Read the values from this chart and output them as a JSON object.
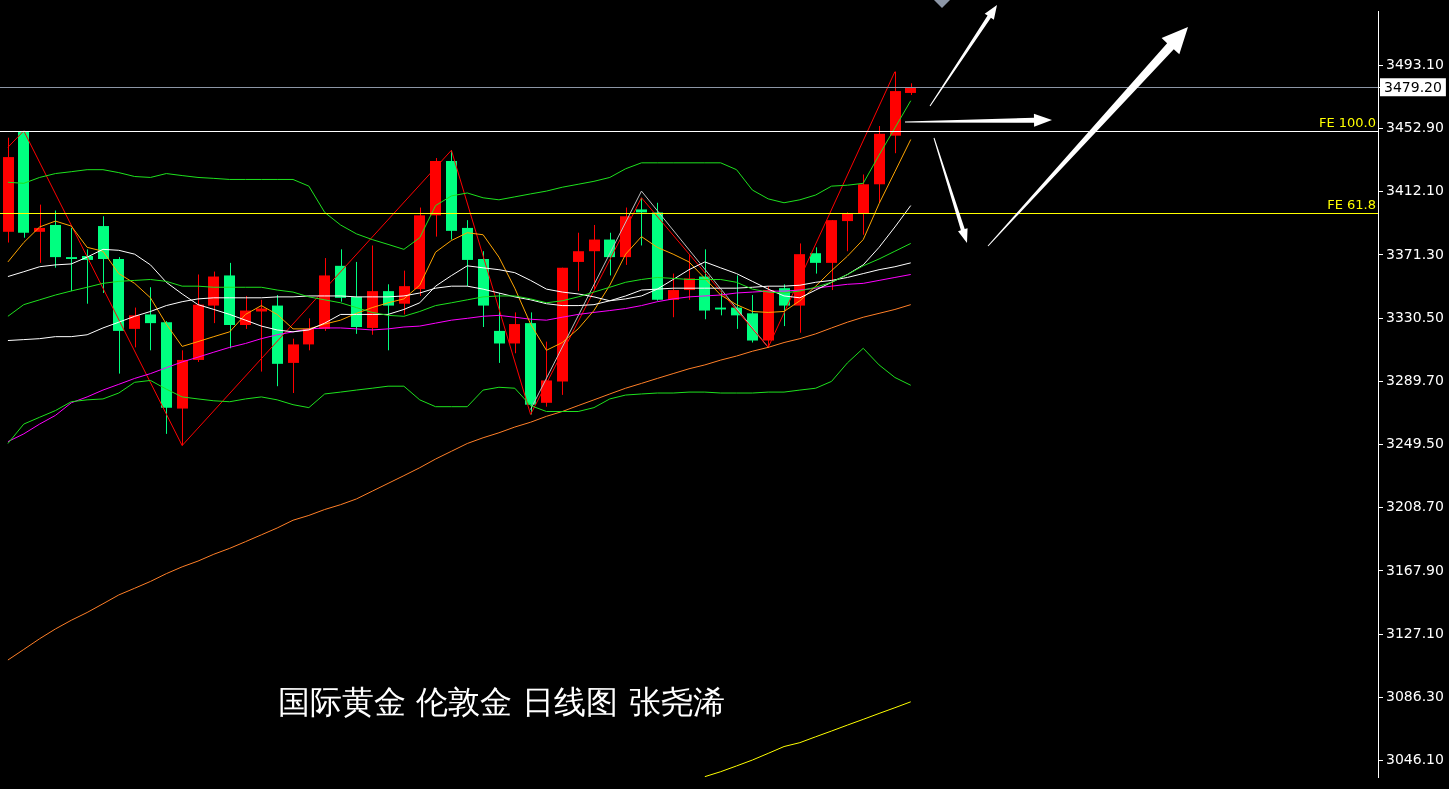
{
  "chart_data": {
    "type": "candlestick",
    "categories": [
      null,
      null,
      null,
      null,
      null,
      null,
      null,
      null,
      null,
      null,
      null,
      null,
      null,
      null,
      null,
      null,
      null,
      null,
      null,
      null,
      null,
      null,
      null,
      null,
      null,
      null,
      null,
      null,
      null,
      null,
      null,
      null,
      null,
      null,
      null,
      null,
      null,
      null,
      null,
      null,
      null,
      null,
      null,
      null,
      null,
      null,
      null,
      null,
      null,
      null,
      null,
      null,
      null,
      null,
      null,
      null,
      null,
      null,
      null,
      null,
      null,
      null,
      null,
      null,
      null,
      null,
      null,
      null,
      null,
      null,
      null,
      null,
      null,
      null,
      null,
      null,
      null,
      null,
      null,
      null,
      null,
      null,
      null,
      null,
      null,
      null,
      null
    ],
    "ohlc": [
      [
        3386.2,
        3446.8,
        3379.3,
        3434.3
      ],
      [
        3450.6,
        3451.2,
        3382.4,
        3385.6
      ],
      [
        3386.2,
        3403.7,
        3366.2,
        3388.7
      ],
      [
        3390.6,
        3399.9,
        3363.1,
        3369.9
      ],
      [
        3369.9,
        3388.7,
        3348.0,
        3368.7
      ],
      [
        3370.6,
        3374.9,
        3339.9,
        3368.1
      ],
      [
        3389.9,
        3396.2,
        3346.8,
        3368.7
      ],
      [
        3368.7,
        3369.9,
        3294.9,
        3322.4
      ],
      [
        3323.7,
        3337.4,
        3311.8,
        3332.4
      ],
      [
        3333.0,
        3350.5,
        3309.9,
        3327.4
      ],
      [
        3328.0,
        3328.7,
        3256.1,
        3273.0
      ],
      [
        3272.4,
        3309.9,
        3248.6,
        3303.7
      ],
      [
        3303.7,
        3358.7,
        3302.4,
        3339.3
      ],
      [
        3338.7,
        3360.6,
        3327.4,
        3357.4
      ],
      [
        3358.1,
        3366.2,
        3311.2,
        3326.2
      ],
      [
        3326.2,
        3344.9,
        3323.7,
        3335.5
      ],
      [
        3334.9,
        3342.4,
        3296.2,
        3336.8
      ],
      [
        3338.7,
        3345.5,
        3286.8,
        3301.2
      ],
      [
        3301.8,
        3317.4,
        3282.4,
        3313.7
      ],
      [
        3313.7,
        3330.5,
        3309.9,
        3323.7
      ],
      [
        3323.7,
        3369.3,
        3322.4,
        3358.1
      ],
      [
        3364.3,
        3374.9,
        3341.2,
        3343.7
      ],
      [
        3344.3,
        3366.8,
        3320.5,
        3324.9
      ],
      [
        3324.3,
        3377.4,
        3319.9,
        3348.0
      ],
      [
        3348.0,
        3352.4,
        3309.9,
        3338.7
      ],
      [
        3339.9,
        3361.2,
        3333.0,
        3351.2
      ],
      [
        3349.3,
        3401.8,
        3344.9,
        3396.8
      ],
      [
        3396.8,
        3433.7,
        3383.1,
        3431.8
      ],
      [
        3431.8,
        3438.7,
        3381.2,
        3386.8
      ],
      [
        3388.7,
        3393.7,
        3351.2,
        3368.1
      ],
      [
        3368.7,
        3373.7,
        3324.9,
        3338.7
      ],
      [
        3322.4,
        3346.8,
        3301.8,
        3314.3
      ],
      [
        3314.3,
        3334.3,
        3308.0,
        3326.8
      ],
      [
        3327.4,
        3334.3,
        3268.6,
        3274.9
      ],
      [
        3276.1,
        3315.5,
        3273.6,
        3290.5
      ],
      [
        3289.9,
        3363.1,
        3281.2,
        3363.1
      ],
      [
        3366.8,
        3385.6,
        3348.0,
        3373.7
      ],
      [
        3373.7,
        3390.6,
        3348.7,
        3381.2
      ],
      [
        3381.2,
        3385.6,
        3358.1,
        3369.9
      ],
      [
        3369.9,
        3401.8,
        3364.9,
        3396.2
      ],
      [
        3400.6,
        3408.1,
        3377.4,
        3398.7
      ],
      [
        3398.7,
        3404.9,
        3341.8,
        3342.4
      ],
      [
        3342.4,
        3359.3,
        3331.2,
        3348.7
      ],
      [
        3348.7,
        3371.2,
        3342.4,
        3356.2
      ],
      [
        3357.4,
        3374.9,
        3329.9,
        3335.5
      ],
      [
        3337.4,
        3348.0,
        3332.4,
        3336.2
      ],
      [
        3337.4,
        3358.1,
        3323.7,
        3332.4
      ],
      [
        3333.7,
        3345.5,
        3314.9,
        3316.2
      ],
      [
        3316.2,
        3351.2,
        3311.8,
        3348.7
      ],
      [
        3349.9,
        3352.4,
        3325.5,
        3338.7
      ],
      [
        3338.7,
        3378.7,
        3321.2,
        3371.8
      ],
      [
        3372.4,
        3376.2,
        3359.3,
        3366.2
      ],
      [
        3366.2,
        3393.7,
        3348.7,
        3393.7
      ],
      [
        3393.1,
        3398.7,
        3373.7,
        3398.1
      ],
      [
        3398.1,
        3423.1,
        3384.3,
        3416.8
      ],
      [
        3416.8,
        3454.3,
        3404.9,
        3449.3
      ],
      [
        3448.1,
        3489.3,
        3436.8,
        3476.8
      ],
      [
        3475.6,
        3481.8,
        3474.3,
        3479.2
      ],
      null,
      null,
      null,
      null,
      null,
      null,
      null,
      null,
      null,
      null,
      null,
      null,
      null,
      null,
      null,
      null,
      null,
      null,
      null,
      null,
      null,
      null,
      null,
      null,
      null,
      null,
      null,
      null,
      null
    ],
    "colors": [
      "#ff0000",
      "#00ff80",
      "#ff0000",
      "#00ff80",
      "#00ff80",
      "#00ff80",
      "#00ff80",
      "#00ff80",
      "#ff0000",
      "#00ff80",
      "#00ff80",
      "#ff0000",
      "#ff0000",
      "#ff0000",
      "#00ff80",
      "#ff0000",
      "#ff0000",
      "#00ff80",
      "#ff0000",
      "#ff0000",
      "#ff0000",
      "#00ff80",
      "#00ff80",
      "#ff0000",
      "#00ff80",
      "#ff0000",
      "#ff0000",
      "#ff0000",
      "#00ff80",
      "#00ff80",
      "#00ff80",
      "#00ff80",
      "#ff0000",
      "#00ff80",
      "#ff0000",
      "#ff0000",
      "#ff0000",
      "#ff0000",
      "#00ff80",
      "#ff0000",
      "#00ff80",
      "#00ff80",
      "#ff0000",
      "#ff0000",
      "#00ff80",
      "#00ff80",
      "#00ff80",
      "#00ff80",
      "#ff0000",
      "#00ff80",
      "#ff0000",
      "#00ff80",
      "#ff0000",
      "#ff0000",
      "#ff0000",
      "#ff0000",
      "#ff0000",
      "#ff0000",
      null,
      null,
      null,
      null,
      null,
      null,
      null,
      null,
      null,
      null,
      null,
      null,
      null,
      null,
      null,
      null,
      null,
      null,
      null,
      null,
      null,
      null,
      null,
      null,
      null,
      null,
      null,
      null,
      null
    ],
    "series": [
      {
        "type": "line",
        "color": "#1ee11e",
        "values": [
          3418.1,
          3417.4,
          3421.2,
          3423.7,
          3424.9,
          3426.2,
          3426.2,
          3424.3,
          3421.8,
          3421.2,
          3423.7,
          3422.4,
          3421.2,
          3420.6,
          3419.9,
          3419.9,
          3419.9,
          3419.9,
          3419.9,
          3415.6,
          3398.7,
          3390.6,
          3384.9,
          3381.2,
          3378.1,
          3374.9,
          3382.4,
          3403.1,
          3409.3,
          3411.2,
          3408.1,
          3406.8,
          3408.7,
          3410.6,
          3412.4,
          3414.9,
          3416.8,
          3418.7,
          3421.2,
          3426.8,
          3430.6,
          3430.6,
          3430.6,
          3430.6,
          3430.6,
          3430.6,
          3426.2,
          3413.1,
          3407.4,
          3404.9,
          3406.8,
          3409.9,
          3415.6,
          3416.2,
          3417.4,
          3435.6,
          3453.1,
          3470.6,
          null,
          null,
          null,
          null,
          null,
          null,
          null,
          null,
          null,
          null,
          null,
          null,
          null,
          null,
          null,
          null,
          null,
          null,
          null,
          null,
          null,
          null,
          null,
          null,
          null,
          null,
          null,
          null,
          null
        ]
      },
      {
        "type": "line",
        "color": "#1ee11e",
        "values": [
          3331.8,
          3339.3,
          3342.4,
          3345.5,
          3348.1,
          3350.5,
          3353.0,
          3354.3,
          3354.9,
          3355.5,
          3354.3,
          3351.2,
          3351.2,
          3350.5,
          3350.5,
          3350.5,
          3350.5,
          3348.7,
          3347.4,
          3344.3,
          3342.4,
          3340.5,
          3337.4,
          3334.3,
          3332.4,
          3331.8,
          3334.9,
          3338.7,
          3340.5,
          3342.4,
          3344.3,
          3344.9,
          3344.9,
          3343.0,
          3340.5,
          3341.8,
          3344.3,
          3347.4,
          3350.5,
          3353.7,
          3355.5,
          3356.8,
          3356.2,
          3355.5,
          3355.5,
          3355.5,
          3353.7,
          3349.3,
          3347.4,
          3346.8,
          3348.1,
          3350.5,
          3353.7,
          3358.7,
          3364.3,
          3368.7,
          3373.7,
          3378.7,
          null,
          null,
          null,
          null,
          null,
          null,
          null,
          null,
          null,
          null,
          null,
          null,
          null,
          null,
          null,
          null,
          null,
          null,
          null,
          null,
          null,
          null,
          null,
          null,
          null,
          null,
          null,
          null,
          null
        ]
      },
      {
        "type": "line",
        "color": "#1ee11e",
        "values": [
          3249.9,
          3262.4,
          3266.8,
          3271.1,
          3276.8,
          3278.0,
          3278.6,
          3282.4,
          3289.3,
          3290.5,
          3284.9,
          3279.9,
          3278.6,
          3277.4,
          3276.8,
          3278.6,
          3279.9,
          3278.0,
          3274.9,
          3273.0,
          3281.8,
          3283.0,
          3284.3,
          3285.5,
          3286.8,
          3286.8,
          3278.0,
          3273.6,
          3273.6,
          3273.6,
          3284.3,
          3286.1,
          3285.5,
          3274.3,
          3270.5,
          3270.5,
          3270.5,
          3273.0,
          3278.6,
          3281.1,
          3281.8,
          3282.4,
          3282.4,
          3283.0,
          3283.0,
          3282.4,
          3282.4,
          3282.4,
          3283.0,
          3283.0,
          3284.3,
          3285.5,
          3289.9,
          3301.8,
          3311.2,
          3300.5,
          3292.4,
          3287.4,
          null,
          null,
          null,
          null,
          null,
          null,
          null,
          null,
          null,
          null,
          null,
          null,
          null,
          null,
          null,
          null,
          null,
          null,
          null,
          null,
          null,
          null,
          null,
          null,
          null,
          null,
          null,
          null,
          null
        ]
      },
      {
        "type": "line",
        "color": "#ffffff",
        "values": [
          3357.4,
          3360.5,
          3363.7,
          3364.9,
          3365.5,
          3369.9,
          3374.9,
          3374.3,
          3371.8,
          3364.9,
          3353.7,
          3346.2,
          3339.3,
          3336.2,
          3333.0,
          3329.3,
          3325.5,
          3323.0,
          3321.8,
          3323.0,
          3327.4,
          3333.0,
          3333.0,
          3333.0,
          3333.0,
          3336.2,
          3340.5,
          3351.2,
          3358.0,
          3364.3,
          3363.0,
          3361.8,
          3359.9,
          3354.9,
          3349.3,
          3347.4,
          3346.2,
          3344.3,
          3341.8,
          3343.0,
          3344.9,
          3349.3,
          3355.5,
          3361.8,
          3366.8,
          3363.0,
          3359.3,
          3354.3,
          3349.3,
          3344.9,
          3343.7,
          3348.7,
          3353.7,
          3358.7,
          3364.9,
          3376.2,
          3389.3,
          3403.1,
          null,
          null,
          null,
          null,
          null,
          null,
          null,
          null,
          null,
          null,
          null,
          null,
          null,
          null,
          null,
          null,
          null,
          null,
          null,
          null,
          null,
          null,
          null,
          null,
          null,
          null,
          null,
          null,
          null
        ]
      },
      {
        "type": "line",
        "color": "#ffffff",
        "values": [
          3316.2,
          3316.8,
          3317.4,
          3318.7,
          3318.7,
          3319.9,
          3324.3,
          3328.0,
          3331.8,
          3334.9,
          3338.7,
          3341.2,
          3343.0,
          3343.7,
          3343.7,
          3343.7,
          3343.7,
          3344.3,
          3344.3,
          3344.9,
          3344.9,
          3344.9,
          3344.3,
          3344.3,
          3344.3,
          3344.9,
          3346.8,
          3349.9,
          3351.2,
          3351.2,
          3349.3,
          3346.8,
          3344.3,
          3342.4,
          3339.9,
          3338.7,
          3338.7,
          3339.3,
          3341.8,
          3344.9,
          3348.7,
          3349.3,
          3349.9,
          3349.9,
          3349.9,
          3349.9,
          3349.9,
          3350.5,
          3351.2,
          3351.2,
          3351.8,
          3353.7,
          3354.9,
          3356.8,
          3359.3,
          3361.8,
          3363.7,
          3366.2,
          null,
          null,
          null,
          null,
          null,
          null,
          null,
          null,
          null,
          null,
          null,
          null,
          null,
          null,
          null,
          null,
          null,
          null,
          null,
          null,
          null,
          null,
          null,
          null,
          null,
          null,
          null,
          null,
          null
        ]
      },
      {
        "type": "line",
        "color": "#ffa500",
        "values": [
          3366.8,
          3379.3,
          3389.3,
          3393.1,
          3389.9,
          3376.2,
          3373.7,
          3359.3,
          3353.0,
          3343.7,
          3326.8,
          3312.4,
          3315.5,
          3318.7,
          3321.8,
          3333.0,
          3338.7,
          3333.0,
          3323.7,
          3323.7,
          3326.8,
          3329.3,
          3333.7,
          3337.4,
          3340.5,
          3343.0,
          3351.8,
          3373.1,
          3380.6,
          3385.6,
          3384.3,
          3369.9,
          3349.9,
          3326.8,
          3309.9,
          3314.9,
          3323.7,
          3335.5,
          3351.8,
          3371.8,
          3383.1,
          3376.2,
          3371.8,
          3366.8,
          3356.2,
          3345.5,
          3339.3,
          3334.9,
          3334.3,
          3334.9,
          3341.8,
          3351.2,
          3361.2,
          3370.5,
          3381.2,
          3404.3,
          3424.9,
          3445.6,
          null,
          null,
          null,
          null,
          null,
          null,
          null,
          null,
          null,
          null,
          null,
          null,
          null,
          null,
          null,
          null,
          null,
          null,
          null,
          null,
          null,
          null,
          null,
          null,
          null,
          null,
          null,
          null,
          null
        ]
      },
      {
        "type": "line",
        "color": "#ff00ff",
        "values": [
          3251.1,
          3256.1,
          3262.4,
          3268.0,
          3276.1,
          3279.9,
          3284.3,
          3288.0,
          3291.8,
          3294.9,
          3298.7,
          3302.4,
          3305.5,
          3308.7,
          3311.8,
          3314.3,
          3317.4,
          3319.9,
          3321.8,
          3323.7,
          3324.3,
          3324.3,
          3323.7,
          3323.0,
          3323.7,
          3324.9,
          3325.5,
          3327.4,
          3329.3,
          3330.5,
          3331.8,
          3332.4,
          3331.2,
          3329.9,
          3329.3,
          3331.2,
          3333.0,
          3334.3,
          3335.5,
          3336.8,
          3338.7,
          3341.2,
          3343.0,
          3344.3,
          3344.9,
          3345.5,
          3346.8,
          3347.4,
          3348.0,
          3348.0,
          3348.7,
          3349.9,
          3351.2,
          3352.4,
          3353.0,
          3354.9,
          3356.8,
          3358.7,
          null,
          null,
          null,
          null,
          null,
          null,
          null,
          null,
          null,
          null,
          null,
          null,
          null,
          null,
          null,
          null,
          null,
          null,
          null,
          null,
          null,
          null,
          null,
          null,
          null,
          null,
          null,
          null,
          null
        ]
      },
      {
        "type": "line",
        "color": "#ff7f27",
        "values": [
          3110.5,
          3117.3,
          3124.2,
          3130.5,
          3136.1,
          3141.1,
          3146.7,
          3152.4,
          3156.7,
          3161.1,
          3166.1,
          3170.5,
          3174.2,
          3178.6,
          3182.4,
          3186.7,
          3191.1,
          3195.5,
          3200.5,
          3203.6,
          3207.4,
          3210.5,
          3214.2,
          3219.2,
          3224.2,
          3229.2,
          3234.3,
          3239.9,
          3244.9,
          3249.9,
          3253.6,
          3256.8,
          3260.5,
          3263.6,
          3267.4,
          3270.5,
          3274.3,
          3278.0,
          3281.8,
          3285.5,
          3288.6,
          3291.8,
          3294.9,
          3298.0,
          3300.5,
          3303.6,
          3306.2,
          3309.3,
          3311.8,
          3314.9,
          3317.4,
          3320.5,
          3324.3,
          3328.0,
          3331.2,
          3333.7,
          3336.2,
          3339.3,
          null,
          null,
          null,
          null,
          null,
          null,
          null,
          null,
          null,
          null,
          null,
          null,
          null,
          null,
          null,
          null,
          null,
          null,
          null,
          null,
          null,
          null,
          null,
          null,
          null,
          null,
          null,
          null,
          null
        ]
      },
      {
        "type": "line",
        "color": "#ffff00",
        "values": [
          null,
          null,
          null,
          null,
          null,
          null,
          null,
          null,
          null,
          null,
          null,
          null,
          null,
          null,
          null,
          null,
          null,
          null,
          null,
          null,
          null,
          null,
          null,
          null,
          null,
          null,
          null,
          null,
          null,
          null,
          null,
          null,
          null,
          null,
          null,
          null,
          null,
          null,
          null,
          null,
          null,
          null,
          null,
          null,
          3035.4,
          3038.6,
          3042.3,
          3046.1,
          3050.4,
          3054.8,
          3057.3,
          3061.1,
          3064.8,
          3068.6,
          3072.3,
          3076.1,
          3079.8,
          3083.6,
          null,
          null,
          null,
          null,
          null,
          null,
          null,
          null,
          null,
          null,
          null,
          null,
          null,
          null,
          null,
          null,
          null,
          null,
          null,
          null,
          null,
          null,
          null,
          null,
          null,
          null,
          null,
          null,
          null
        ]
      },
      {
        "type": "line",
        "color": "#ff0000",
        "values": [
          3440.6,
          3451.2,
          null,
          null,
          null,
          null,
          null,
          null,
          null,
          null,
          null,
          3248.6,
          null,
          null,
          null,
          null,
          null,
          null,
          null,
          null,
          null,
          null,
          null,
          null,
          null,
          null,
          null,
          null,
          3438.7,
          null,
          null,
          null,
          null,
          3268.6,
          null,
          null,
          null,
          null,
          null,
          null,
          3408.1,
          null,
          null,
          null,
          null,
          null,
          null,
          null,
          3311.8,
          null,
          null,
          null,
          null,
          null,
          null,
          null,
          3489.3,
          null,
          null,
          null,
          null,
          null,
          null,
          null,
          null,
          null,
          null,
          null,
          null,
          null,
          null,
          null,
          null,
          null,
          null,
          null,
          null,
          null,
          null,
          null,
          null,
          null,
          null,
          null,
          null,
          null,
          null
        ]
      },
      {
        "type": "line",
        "color": "#c0c0c0",
        "values": [
          null,
          null,
          null,
          null,
          null,
          null,
          null,
          null,
          null,
          null,
          null,
          null,
          null,
          null,
          null,
          null,
          null,
          null,
          null,
          null,
          null,
          null,
          null,
          null,
          null,
          null,
          null,
          null,
          null,
          null,
          null,
          null,
          null,
          3271.8,
          null,
          null,
          null,
          null,
          null,
          null,
          3412.4,
          null,
          null,
          null,
          null,
          null,
          null,
          null,
          3311.8,
          null,
          null,
          null,
          null,
          null,
          null,
          null,
          null,
          null,
          null,
          null,
          null,
          null,
          null,
          null,
          null,
          null,
          null,
          null,
          null,
          null,
          null,
          null,
          null,
          null,
          null,
          null,
          null,
          null,
          null,
          null,
          null,
          null,
          null,
          null,
          null,
          null,
          null
        ]
      }
    ],
    "ylim": [
      3034.8,
      3528.1
    ],
    "yticks": [
      {
        "value": 3493.1,
        "label": "3493.10"
      },
      {
        "value": 3479.2,
        "label": "3479.20"
      },
      {
        "value": 3452.9,
        "label": "3452.90"
      },
      {
        "value": 3412.1,
        "label": "3412.10"
      },
      {
        "value": 3371.3,
        "label": "3371.30"
      },
      {
        "value": 3330.5,
        "label": "3330.50"
      },
      {
        "value": 3289.7,
        "label": "3289.70"
      },
      {
        "value": 3249.5,
        "label": "3249.50"
      },
      {
        "value": 3208.7,
        "label": "3208.70"
      },
      {
        "value": 3167.9,
        "label": "3167.90"
      },
      {
        "value": 3127.1,
        "label": "3127.10"
      },
      {
        "value": 3086.3,
        "label": "3086.30"
      },
      {
        "value": 3046.1,
        "label": "3046.10"
      }
    ],
    "ref_lines": [
      {
        "axis": "y",
        "value": 3479.2,
        "color": "#8c96a6"
      },
      {
        "axis": "y",
        "value": 3451.2,
        "label": "FE 100.0",
        "color": "#ffffff"
      },
      {
        "axis": "y",
        "value": 3398.1,
        "label": "FE 61.8",
        "color": "#ffff00"
      }
    ],
    "tick_labels": "y",
    "annotations": [
      "国际黄金 伦敦金 日线图 张尧浠"
    ]
  }
}
